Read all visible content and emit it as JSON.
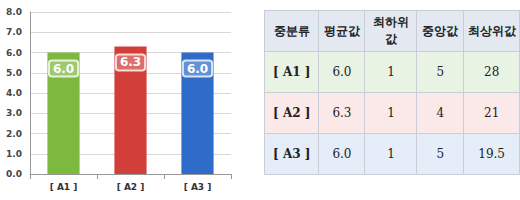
{
  "chart_data": {
    "type": "bar",
    "categories": [
      "[ A1 ]",
      "[ A2 ]",
      "[ A3 ]"
    ],
    "values": [
      6.0,
      6.3,
      6.0
    ],
    "value_labels": [
      "6.0",
      "6.3",
      "6.0"
    ],
    "colors": [
      "#7cb93e",
      "#d23f3a",
      "#2f6cc9"
    ],
    "ylim": [
      0,
      8
    ],
    "yticks": [
      {
        "value": 0,
        "label": "0.0"
      },
      {
        "value": 1,
        "label": "1.0"
      },
      {
        "value": 2,
        "label": "2.0"
      },
      {
        "value": 3,
        "label": "3.0"
      },
      {
        "value": 4,
        "label": "4.0"
      },
      {
        "value": 5,
        "label": "5.0"
      },
      {
        "value": 6,
        "label": "6.0"
      },
      {
        "value": 7,
        "label": "7.0"
      },
      {
        "value": 8,
        "label": "8.0"
      }
    ],
    "grid": true,
    "data_labels": true
  },
  "table": {
    "header": [
      "중분류",
      "평균값",
      "최하위값",
      "중앙값",
      "최상위값"
    ],
    "rows": [
      [
        "[ A1 ]",
        "6.0",
        "1",
        "5",
        "28"
      ],
      [
        "[ A2 ]",
        "6.3",
        "1",
        "4",
        "21"
      ],
      [
        "[ A3 ]",
        "6.0",
        "1",
        "5",
        "19.5"
      ]
    ]
  }
}
